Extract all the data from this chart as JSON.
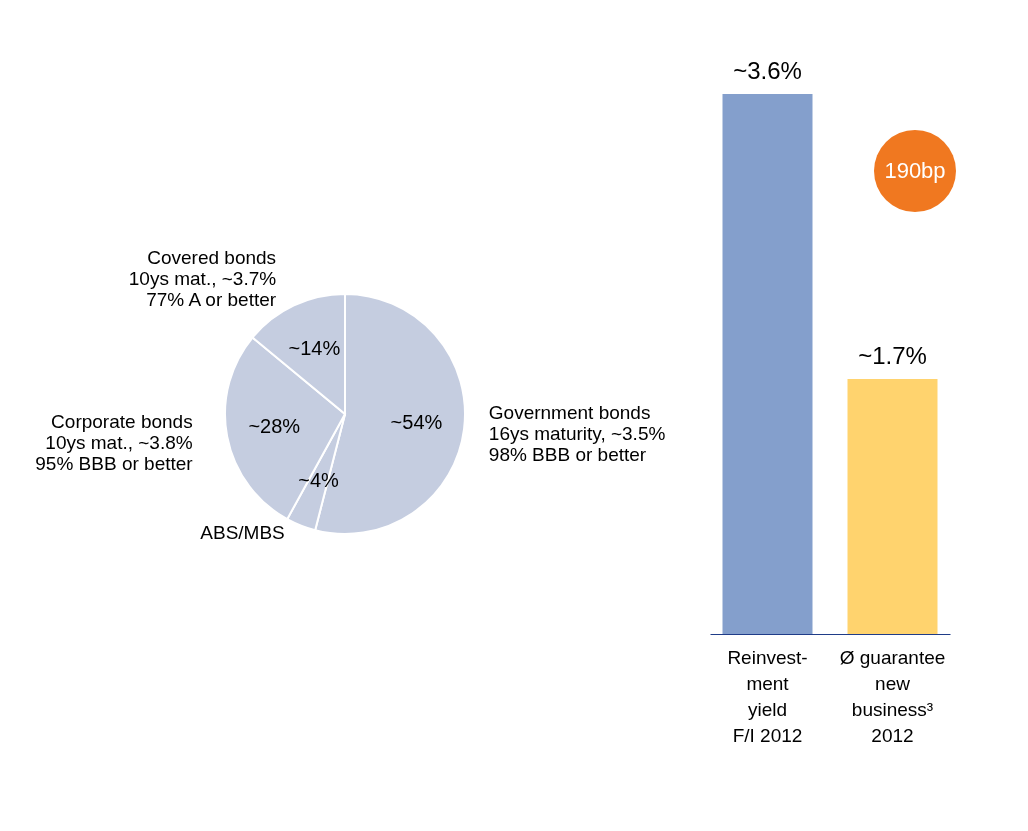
{
  "chart_data": [
    {
      "type": "pie",
      "categories": [
        "Government bonds\n16ys maturity, ~3.5%\n98% BBB or better",
        "ABS/MBS",
        "Corporate bonds\n10ys mat., ~3.8%\n95% BBB or better",
        "Covered bonds\n10ys mat., ~3.7%\n77% A or better"
      ],
      "values": [
        54,
        4,
        28,
        14
      ],
      "value_labels": [
        "~54%",
        "~4%",
        "~28%",
        "~14%"
      ],
      "colors": [
        "#c5cde0",
        "#c5cde0",
        "#c5cde0",
        "#c5cde0"
      ]
    },
    {
      "type": "bar",
      "categories": [
        "Reinvest-\nment\nyield\nF/I 2012",
        "Ø guarantee\nnew\nbusiness³\n2012"
      ],
      "values": [
        3.6,
        1.7
      ],
      "value_labels": [
        "~3.6%",
        "~1.7%"
      ],
      "colors": [
        "#849fcc",
        "#ffd36e"
      ],
      "annotations": [
        "190bp"
      ]
    }
  ]
}
